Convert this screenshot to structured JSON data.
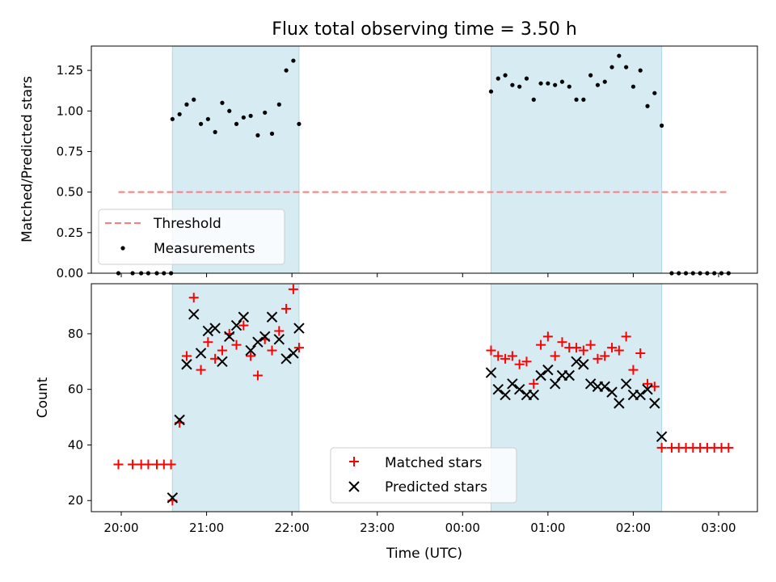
{
  "chart_data": [
    {
      "type": "scatter",
      "title": "Flux total observing time = 3.50 h",
      "xlabel": "",
      "ylabel": "Matched/Predicted stars",
      "ylim": [
        0,
        1.4
      ],
      "yticks": [
        "0.00",
        "0.25",
        "0.50",
        "0.75",
        "1.00",
        "1.25"
      ],
      "shaded_intervals": [
        [
          "20:36",
          "22:05"
        ],
        [
          "00:20",
          "02:20"
        ]
      ],
      "legend": {
        "position": "lower-left",
        "entries": [
          "Threshold",
          "Measurements"
        ]
      },
      "threshold": {
        "name": "Threshold",
        "value": 0.5,
        "x_start": "19:58",
        "x_end": "03:07",
        "color": "#ff7b7b"
      },
      "series": [
        {
          "name": "Measurements",
          "color": "#000000",
          "points": [
            [
              "19:58",
              0
            ],
            [
              "20:08",
              0
            ],
            [
              "20:14",
              0
            ],
            [
              "20:19",
              0
            ],
            [
              "20:25",
              0
            ],
            [
              "20:30",
              0
            ],
            [
              "20:35",
              0
            ],
            [
              "20:36",
              0.95
            ],
            [
              "20:41",
              0.98
            ],
            [
              "20:46",
              1.04
            ],
            [
              "20:51",
              1.07
            ],
            [
              "20:56",
              0.92
            ],
            [
              "21:01",
              0.95
            ],
            [
              "21:06",
              0.87
            ],
            [
              "21:11",
              1.05
            ],
            [
              "21:16",
              1.0
            ],
            [
              "21:21",
              0.92
            ],
            [
              "21:26",
              0.96
            ],
            [
              "21:31",
              0.97
            ],
            [
              "21:36",
              0.85
            ],
            [
              "21:41",
              0.99
            ],
            [
              "21:46",
              0.86
            ],
            [
              "21:51",
              1.04
            ],
            [
              "21:56",
              1.25
            ],
            [
              "22:01",
              1.31
            ],
            [
              "22:05",
              0.92
            ],
            [
              "00:20",
              1.12
            ],
            [
              "00:25",
              1.2
            ],
            [
              "00:30",
              1.22
            ],
            [
              "00:35",
              1.16
            ],
            [
              "00:40",
              1.15
            ],
            [
              "00:45",
              1.2
            ],
            [
              "00:50",
              1.07
            ],
            [
              "00:55",
              1.17
            ],
            [
              "01:00",
              1.17
            ],
            [
              "01:05",
              1.16
            ],
            [
              "01:10",
              1.18
            ],
            [
              "01:15",
              1.15
            ],
            [
              "01:20",
              1.07
            ],
            [
              "01:25",
              1.07
            ],
            [
              "01:30",
              1.22
            ],
            [
              "01:35",
              1.16
            ],
            [
              "01:40",
              1.18
            ],
            [
              "01:45",
              1.27
            ],
            [
              "01:50",
              1.34
            ],
            [
              "01:55",
              1.27
            ],
            [
              "02:00",
              1.15
            ],
            [
              "02:05",
              1.25
            ],
            [
              "02:10",
              1.03
            ],
            [
              "02:15",
              1.11
            ],
            [
              "02:20",
              0.91
            ],
            [
              "02:27",
              0
            ],
            [
              "02:32",
              0
            ],
            [
              "02:37",
              0
            ],
            [
              "02:42",
              0
            ],
            [
              "02:47",
              0
            ],
            [
              "02:52",
              0
            ],
            [
              "02:57",
              0
            ],
            [
              "03:02",
              0
            ],
            [
              "03:07",
              0
            ]
          ]
        }
      ]
    },
    {
      "type": "scatter",
      "title": "",
      "xlabel": "Time (UTC)",
      "ylabel": "Count",
      "ylim": [
        16,
        98
      ],
      "yticks": [
        "20",
        "40",
        "60",
        "80"
      ],
      "xticks": [
        "20:00",
        "21:00",
        "22:00",
        "23:00",
        "00:00",
        "01:00",
        "02:00",
        "03:00"
      ],
      "shaded_intervals": [
        [
          "20:36",
          "22:05"
        ],
        [
          "00:20",
          "02:20"
        ]
      ],
      "legend": {
        "position": "lower-center",
        "entries": [
          "Matched stars",
          "Predicted stars"
        ]
      },
      "series": [
        {
          "name": "Matched stars",
          "marker": "plus",
          "color": "#ff0000",
          "points": [
            [
              "19:58",
              33
            ],
            [
              "20:08",
              33
            ],
            [
              "20:14",
              33
            ],
            [
              "20:19",
              33
            ],
            [
              "20:25",
              33
            ],
            [
              "20:30",
              33
            ],
            [
              "20:35",
              33
            ],
            [
              "20:36",
              20
            ],
            [
              "20:41",
              48
            ],
            [
              "20:46",
              72
            ],
            [
              "20:51",
              93
            ],
            [
              "20:56",
              67
            ],
            [
              "21:01",
              77
            ],
            [
              "21:06",
              71
            ],
            [
              "21:11",
              74
            ],
            [
              "21:16",
              80
            ],
            [
              "21:21",
              76
            ],
            [
              "21:26",
              83
            ],
            [
              "21:31",
              72
            ],
            [
              "21:36",
              65
            ],
            [
              "21:41",
              78
            ],
            [
              "21:46",
              74
            ],
            [
              "21:51",
              81
            ],
            [
              "21:56",
              89
            ],
            [
              "22:01",
              96
            ],
            [
              "22:05",
              75
            ],
            [
              "00:20",
              74
            ],
            [
              "00:25",
              72
            ],
            [
              "00:30",
              71
            ],
            [
              "00:35",
              72
            ],
            [
              "00:40",
              69
            ],
            [
              "00:45",
              70
            ],
            [
              "00:50",
              62
            ],
            [
              "00:55",
              76
            ],
            [
              "01:00",
              79
            ],
            [
              "01:05",
              72
            ],
            [
              "01:10",
              77
            ],
            [
              "01:15",
              75
            ],
            [
              "01:20",
              75
            ],
            [
              "01:25",
              74
            ],
            [
              "01:30",
              76
            ],
            [
              "01:35",
              71
            ],
            [
              "01:40",
              72
            ],
            [
              "01:45",
              75
            ],
            [
              "01:50",
              74
            ],
            [
              "01:55",
              79
            ],
            [
              "02:00",
              67
            ],
            [
              "02:05",
              73
            ],
            [
              "02:10",
              62
            ],
            [
              "02:15",
              61
            ],
            [
              "02:20",
              39
            ],
            [
              "02:27",
              39
            ],
            [
              "02:32",
              39
            ],
            [
              "02:37",
              39
            ],
            [
              "02:42",
              39
            ],
            [
              "02:47",
              39
            ],
            [
              "02:52",
              39
            ],
            [
              "02:57",
              39
            ],
            [
              "03:02",
              39
            ],
            [
              "03:07",
              39
            ]
          ]
        },
        {
          "name": "Predicted stars",
          "marker": "x",
          "color": "#000000",
          "points": [
            [
              "20:36",
              21
            ],
            [
              "20:41",
              49
            ],
            [
              "20:46",
              69
            ],
            [
              "20:51",
              87
            ],
            [
              "20:56",
              73
            ],
            [
              "21:01",
              81
            ],
            [
              "21:06",
              82
            ],
            [
              "21:11",
              70
            ],
            [
              "21:16",
              79
            ],
            [
              "21:21",
              83
            ],
            [
              "21:26",
              86
            ],
            [
              "21:31",
              74
            ],
            [
              "21:36",
              77
            ],
            [
              "21:41",
              79
            ],
            [
              "21:46",
              86
            ],
            [
              "21:51",
              78
            ],
            [
              "21:56",
              71
            ],
            [
              "22:01",
              73
            ],
            [
              "22:05",
              82
            ],
            [
              "00:20",
              66
            ],
            [
              "00:25",
              60
            ],
            [
              "00:30",
              58
            ],
            [
              "00:35",
              62
            ],
            [
              "00:40",
              60
            ],
            [
              "00:45",
              58
            ],
            [
              "00:50",
              58
            ],
            [
              "00:55",
              65
            ],
            [
              "01:00",
              67
            ],
            [
              "01:05",
              62
            ],
            [
              "01:10",
              65
            ],
            [
              "01:15",
              65
            ],
            [
              "01:20",
              70
            ],
            [
              "01:25",
              69
            ],
            [
              "01:30",
              62
            ],
            [
              "01:35",
              61
            ],
            [
              "01:40",
              61
            ],
            [
              "01:45",
              59
            ],
            [
              "01:50",
              55
            ],
            [
              "01:55",
              62
            ],
            [
              "02:00",
              58
            ],
            [
              "02:05",
              58
            ],
            [
              "02:10",
              60
            ],
            [
              "02:15",
              55
            ],
            [
              "02:20",
              43
            ]
          ]
        }
      ]
    }
  ]
}
